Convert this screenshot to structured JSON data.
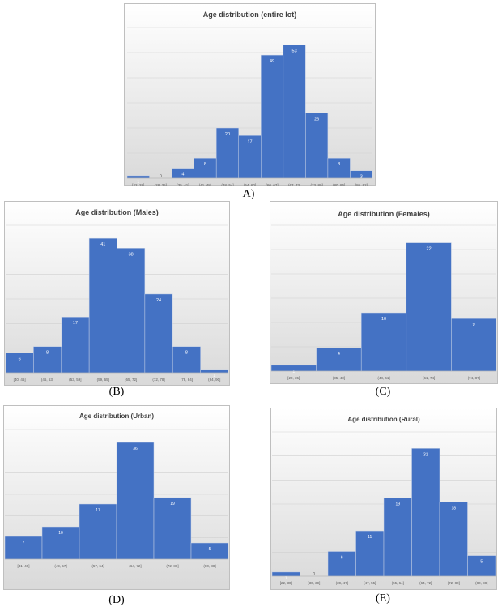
{
  "figure": {
    "captions": [
      "A)",
      "(B)",
      "(C)",
      "(D)",
      "(E)"
    ]
  },
  "colors": {
    "bar": "#4472c4",
    "bar_edge": "#c9d3e6",
    "grid": "#d0d0d0",
    "label": "#ffffff",
    "title": "#404040",
    "tick": "#595959"
  },
  "chart_data": [
    {
      "type": "bar",
      "title": "Age distribution (entire lot)",
      "categories": [
        "[22, 28]",
        "(28, 35]",
        "(35, 41]",
        "(41, 48]",
        "(48, 54]",
        "(54, 60]",
        "(60, 67]",
        "(67, 73]",
        "(73, 80]",
        "(80, 86]",
        "(86, 92]"
      ],
      "values": [
        1,
        0,
        4,
        8,
        20,
        17,
        49,
        53,
        26,
        8,
        3
      ],
      "ylim": [
        0,
        60
      ],
      "grid": true
    },
    {
      "type": "bar",
      "title": "Age distribution (Males)",
      "categories": [
        "[40, 46]",
        "(46, 53]",
        "(53, 59]",
        "(59, 65]",
        "(65, 72]",
        "(72, 78]",
        "(78, 84]",
        "(84, 90]"
      ],
      "values": [
        6,
        8,
        17,
        41,
        38,
        24,
        8,
        1
      ],
      "ylim": [
        0,
        45
      ],
      "grid": true
    },
    {
      "type": "bar",
      "title": "Age distribution (Females)",
      "categories": [
        "[22, 35]",
        "(35, 48]",
        "(48, 61]",
        "(61, 74]",
        "(74, 87]"
      ],
      "values": [
        1,
        4,
        10,
        22,
        9
      ],
      "ylim": [
        0,
        25
      ],
      "grid": true
    },
    {
      "type": "bar",
      "title": "Age distribution (Urban)",
      "categories": [
        "[41, 49]",
        "(49, 57]",
        "(57, 64]",
        "(64, 72]",
        "(72, 80]",
        "(80, 88]"
      ],
      "values": [
        7,
        10,
        17,
        36,
        19,
        5
      ],
      "ylim": [
        0,
        40
      ],
      "grid": true
    },
    {
      "type": "bar",
      "title": "Age distribution (Rural)",
      "categories": [
        "[22, 30]",
        "(30, 39]",
        "(39, 47]",
        "(47, 55]",
        "(55, 64]",
        "(64, 72]",
        "(72, 80]",
        "(80, 88]"
      ],
      "values": [
        1,
        0,
        6,
        11,
        19,
        31,
        18,
        5
      ],
      "ylim": [
        0,
        35
      ],
      "grid": true
    }
  ]
}
